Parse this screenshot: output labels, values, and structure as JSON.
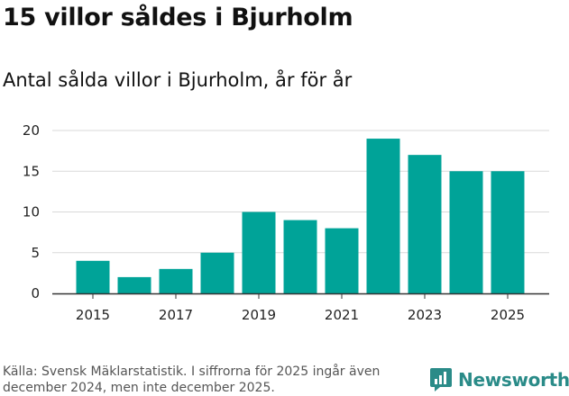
{
  "header": {
    "title": "15 villor såldes i Bjurholm",
    "subtitle": "Antal sålda villor i Bjurholm, år för år"
  },
  "footer": {
    "source": "Källa: Svensk Mäklarstatistik. I siffrorna för 2025 ingår även december 2024, men inte december 2025.",
    "brand": "Newsworthy"
  },
  "colors": {
    "bar": "#00a398",
    "brand": "#2a8b88",
    "grid": "#d9d9d9",
    "axis": "#333333"
  },
  "chart_data": {
    "type": "bar",
    "title": "Antal sålda villor i Bjurholm, år för år",
    "xlabel": "",
    "ylabel": "",
    "categories": [
      "2015",
      "2016",
      "2017",
      "2018",
      "2019",
      "2020",
      "2021",
      "2022",
      "2023",
      "2024",
      "2025"
    ],
    "values": [
      4,
      2,
      3,
      5,
      10,
      9,
      8,
      19,
      17,
      15,
      15
    ],
    "x_tick_labels": [
      "2015",
      "2017",
      "2019",
      "2021",
      "2023",
      "2025"
    ],
    "y_ticks": [
      0,
      5,
      10,
      15,
      20
    ],
    "ylim": [
      0,
      20
    ],
    "grid": true
  }
}
